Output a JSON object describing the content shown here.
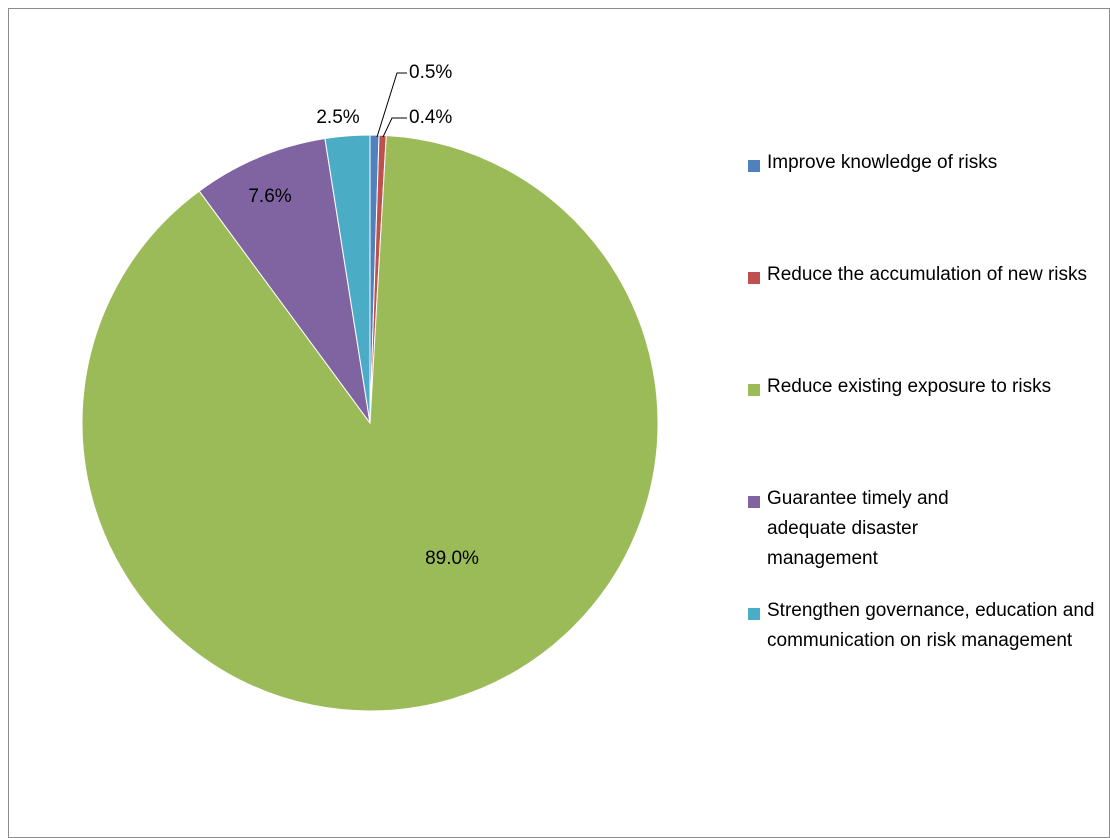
{
  "chart_data": {
    "type": "pie",
    "title": "",
    "slices": [
      {
        "label": "Improve knowledge of risks",
        "value": 0.5,
        "display": "0.5%",
        "color": "#4F81BD"
      },
      {
        "label": "Reduce the accumulation of new risks",
        "value": 0.4,
        "display": "0.4%",
        "color": "#C0504D"
      },
      {
        "label": "Reduce existing exposure to risks",
        "value": 89.0,
        "display": "89.0%",
        "color": "#9BBB59"
      },
      {
        "label": "Guarantee timely and adequate disaster management",
        "value": 7.6,
        "display": "7.6%",
        "color": "#8064A2"
      },
      {
        "label": "Strengthen governance, education and communication on risk management",
        "value": 2.5,
        "display": "2.5%",
        "color": "#4BACC6"
      }
    ],
    "legend_position": "right",
    "legend": [
      {
        "label": "Improve knowledge of risks",
        "color": "#4F81BD"
      },
      {
        "label": "Reduce the accumulation of new risks",
        "color": "#C0504D"
      },
      {
        "label": "Reduce existing exposure to risks",
        "color": "#9BBB59"
      },
      {
        "label": "Guarantee timely and adequate disaster management",
        "color": "#8064A2"
      },
      {
        "label": "Strengthen governance, education and communication on risk management",
        "color": "#4BACC6"
      }
    ]
  }
}
